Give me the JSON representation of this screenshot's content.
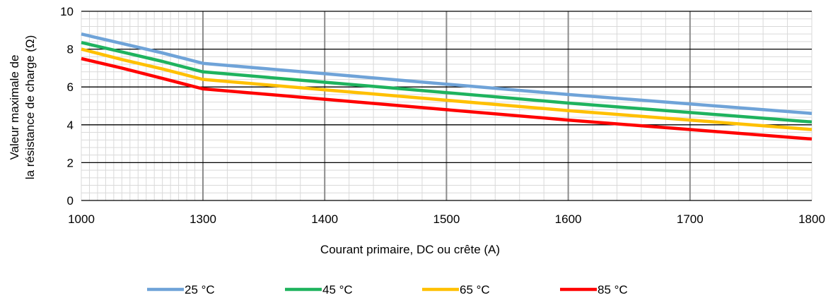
{
  "chart_data": {
    "type": "line",
    "xlabel": "Courant primaire, DC ou crête (A)",
    "ylabel_lines": [
      "Valeur maximale de",
      "la résistance de charge (Ω)"
    ],
    "x_ticks": [
      "1000",
      "1300",
      "1400",
      "1500",
      "1600",
      "1700",
      "1800"
    ],
    "y_ticks": [
      "0",
      "2",
      "4",
      "6",
      "8",
      "10"
    ],
    "ylim": [
      0,
      10
    ],
    "grid": true,
    "legend_position": "bottom",
    "colors": {
      "s25": "#6fa3d8",
      "s45": "#1fb35e",
      "s65": "#ffc000",
      "s85": "#ff0000"
    },
    "x_values": [
      "1000",
      "1100",
      "1200",
      "1300",
      "1400",
      "1500",
      "1600",
      "1700",
      "1800"
    ],
    "series": [
      {
        "name": "25 °C",
        "values": [
          8.8,
          8.3,
          7.8,
          7.25,
          6.7,
          6.15,
          5.6,
          5.1,
          4.6
        ]
      },
      {
        "name": "45 °C",
        "values": [
          8.35,
          7.85,
          7.35,
          6.8,
          6.25,
          5.7,
          5.15,
          4.65,
          4.15
        ]
      },
      {
        "name": "65 °C",
        "values": [
          8.0,
          7.45,
          6.95,
          6.4,
          5.85,
          5.3,
          4.75,
          4.25,
          3.75
        ]
      },
      {
        "name": "85 °C",
        "values": [
          7.5,
          7.0,
          6.45,
          5.9,
          5.35,
          4.8,
          4.25,
          3.75,
          3.25
        ]
      }
    ]
  }
}
